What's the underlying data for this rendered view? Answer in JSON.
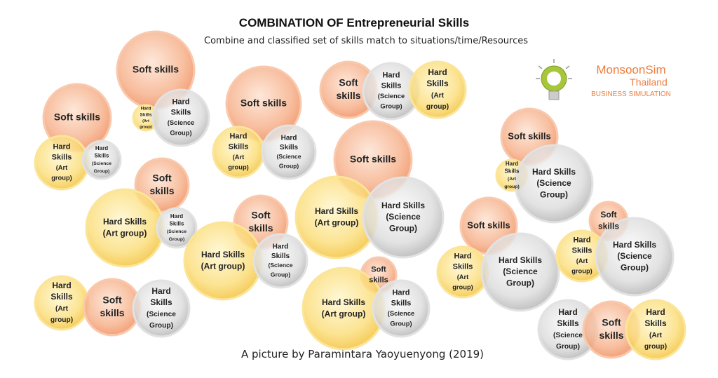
{
  "title": "COMBINATION OF Entrepreneurial Skills",
  "subtitle": "Combine and classified set of skills match to situations/time/Resources",
  "credit": "A picture by Paramintara Yaoyuenyong (2019)",
  "logo": {
    "brand": "MonsoonSim",
    "country": "Thailand",
    "tagline": "BUSINESS SIMULATION"
  },
  "clusters": [
    [
      [
        "Soft skills"
      ],
      [
        "Hard",
        "Skills",
        "(Art",
        "group)"
      ],
      [
        "Hard",
        "Skills",
        "(Science",
        "Group)"
      ]
    ],
    [
      [
        "Soft skills"
      ],
      [
        "Hard",
        "Skills",
        "(Art",
        "group)"
      ],
      [
        "Hard",
        "Skills",
        "(Science",
        "Group)"
      ]
    ],
    [
      [
        "Soft skills"
      ],
      [
        "Hard",
        "Skills",
        "(Art",
        "group)"
      ],
      [
        "Hard",
        "Skills",
        "(Science",
        "Group)"
      ]
    ],
    [
      [
        "Soft",
        "skills"
      ],
      [
        "Hard",
        "Skills",
        "(Science",
        "Group)"
      ],
      [
        "Hard",
        "Skills",
        "(Art",
        "group)"
      ]
    ],
    [
      [
        "Soft skills"
      ],
      [
        "Hard Skills",
        "(Art group)"
      ],
      [
        "Hard Skills",
        "(Science",
        "Group)"
      ]
    ],
    [
      [
        "Soft",
        "skills"
      ],
      [
        "Hard Skills",
        "(Art group)"
      ],
      [
        "Hard",
        "Skills",
        "(Science",
        "Group)"
      ]
    ],
    [
      [
        "Soft",
        "skills"
      ],
      [
        "Hard Skills",
        "(Art group)"
      ],
      [
        "Hard",
        "Skills",
        "(Science",
        "Group)"
      ]
    ],
    [
      [
        "Hard",
        "Skills",
        "(Art",
        "group)"
      ],
      [
        "Soft",
        "skills"
      ],
      [
        "Hard",
        "Skills",
        "(Science",
        "Group)"
      ]
    ],
    [
      [
        "Soft",
        "skills"
      ],
      [
        "Hard Skills",
        "(Art group)"
      ],
      [
        "Hard",
        "Skills",
        "(Science",
        "Group)"
      ]
    ],
    [
      [
        "Soft skills"
      ],
      [
        "Hard",
        "Skills",
        "(Art",
        "group)"
      ],
      [
        "Hard Skills",
        "(Science",
        "Group)"
      ]
    ],
    [
      [
        "Soft skills"
      ],
      [
        "Hard",
        "Skills",
        "(Art",
        "group)"
      ],
      [
        "Hard Skills",
        "(Science",
        "Group)"
      ]
    ],
    [
      [
        "Soft",
        "skills"
      ],
      [
        "Hard",
        "Skills",
        "(Art",
        "group)"
      ],
      [
        "Hard Skills",
        "(Science",
        "Group)"
      ]
    ],
    [
      [
        "Hard",
        "Skills",
        "(Science",
        "Group)"
      ],
      [
        "Soft",
        "skills"
      ],
      [
        "Hard",
        "Skills",
        "(Art",
        "group)"
      ]
    ]
  ]
}
